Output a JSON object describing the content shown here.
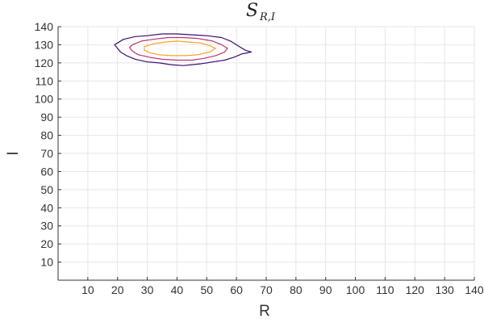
{
  "chart_data": {
    "type": "contour",
    "title": {
      "main": "S",
      "subscript": "R,I"
    },
    "xlabel": "R",
    "ylabel": "I",
    "xlim": [
      0,
      140
    ],
    "ylim": [
      0,
      140
    ],
    "xticks": [
      10,
      20,
      30,
      40,
      50,
      60,
      70,
      80,
      90,
      100,
      110,
      120,
      130,
      140
    ],
    "yticks": [
      10,
      20,
      30,
      40,
      50,
      60,
      70,
      80,
      90,
      100,
      110,
      120,
      130,
      140
    ],
    "grid": true,
    "colors": {
      "outer": "#3b0f70",
      "middle": "#b5367a",
      "inner": "#f8a227",
      "grid": "#e6e6e6",
      "axis": "#333333"
    },
    "contours": [
      {
        "level": "outer",
        "color": "#3b0f70",
        "points": [
          [
            20,
            131
          ],
          [
            22,
            133
          ],
          [
            26,
            134.5
          ],
          [
            30,
            135
          ],
          [
            35,
            136
          ],
          [
            40,
            136
          ],
          [
            45,
            135.5
          ],
          [
            50,
            135
          ],
          [
            55,
            134
          ],
          [
            58,
            132
          ],
          [
            61,
            129
          ],
          [
            63,
            127
          ],
          [
            65,
            126
          ],
          [
            62,
            125
          ],
          [
            59,
            123
          ],
          [
            56,
            121.5
          ],
          [
            52,
            120.5
          ],
          [
            48,
            119.5
          ],
          [
            45,
            119
          ],
          [
            42,
            118.5
          ],
          [
            38,
            119
          ],
          [
            34,
            120
          ],
          [
            30,
            120.5
          ],
          [
            26,
            122
          ],
          [
            23,
            124
          ],
          [
            21,
            126
          ],
          [
            20,
            128
          ],
          [
            19,
            130
          ]
        ]
      },
      {
        "level": "middle",
        "color": "#b5367a",
        "points": [
          [
            25,
            130
          ],
          [
            28,
            132
          ],
          [
            32,
            133
          ],
          [
            37,
            134
          ],
          [
            42,
            134
          ],
          [
            47,
            133.5
          ],
          [
            52,
            132
          ],
          [
            55,
            130
          ],
          [
            57,
            128
          ],
          [
            56,
            126
          ],
          [
            53,
            124
          ],
          [
            49,
            122.5
          ],
          [
            45,
            121.5
          ],
          [
            40,
            121.5
          ],
          [
            35,
            122
          ],
          [
            31,
            123
          ],
          [
            27,
            124.5
          ],
          [
            25,
            126.5
          ],
          [
            24,
            128.5
          ]
        ]
      },
      {
        "level": "inner",
        "color": "#f8a227",
        "points": [
          [
            29,
            129
          ],
          [
            32,
            130.5
          ],
          [
            36,
            131.5
          ],
          [
            40,
            132
          ],
          [
            44,
            131.5
          ],
          [
            48,
            131
          ],
          [
            51,
            129.5
          ],
          [
            53,
            128
          ],
          [
            51,
            126
          ],
          [
            47,
            124.5
          ],
          [
            43,
            124
          ],
          [
            38,
            124
          ],
          [
            34,
            124.5
          ],
          [
            31,
            125.5
          ],
          [
            29,
            127
          ]
        ]
      }
    ]
  }
}
